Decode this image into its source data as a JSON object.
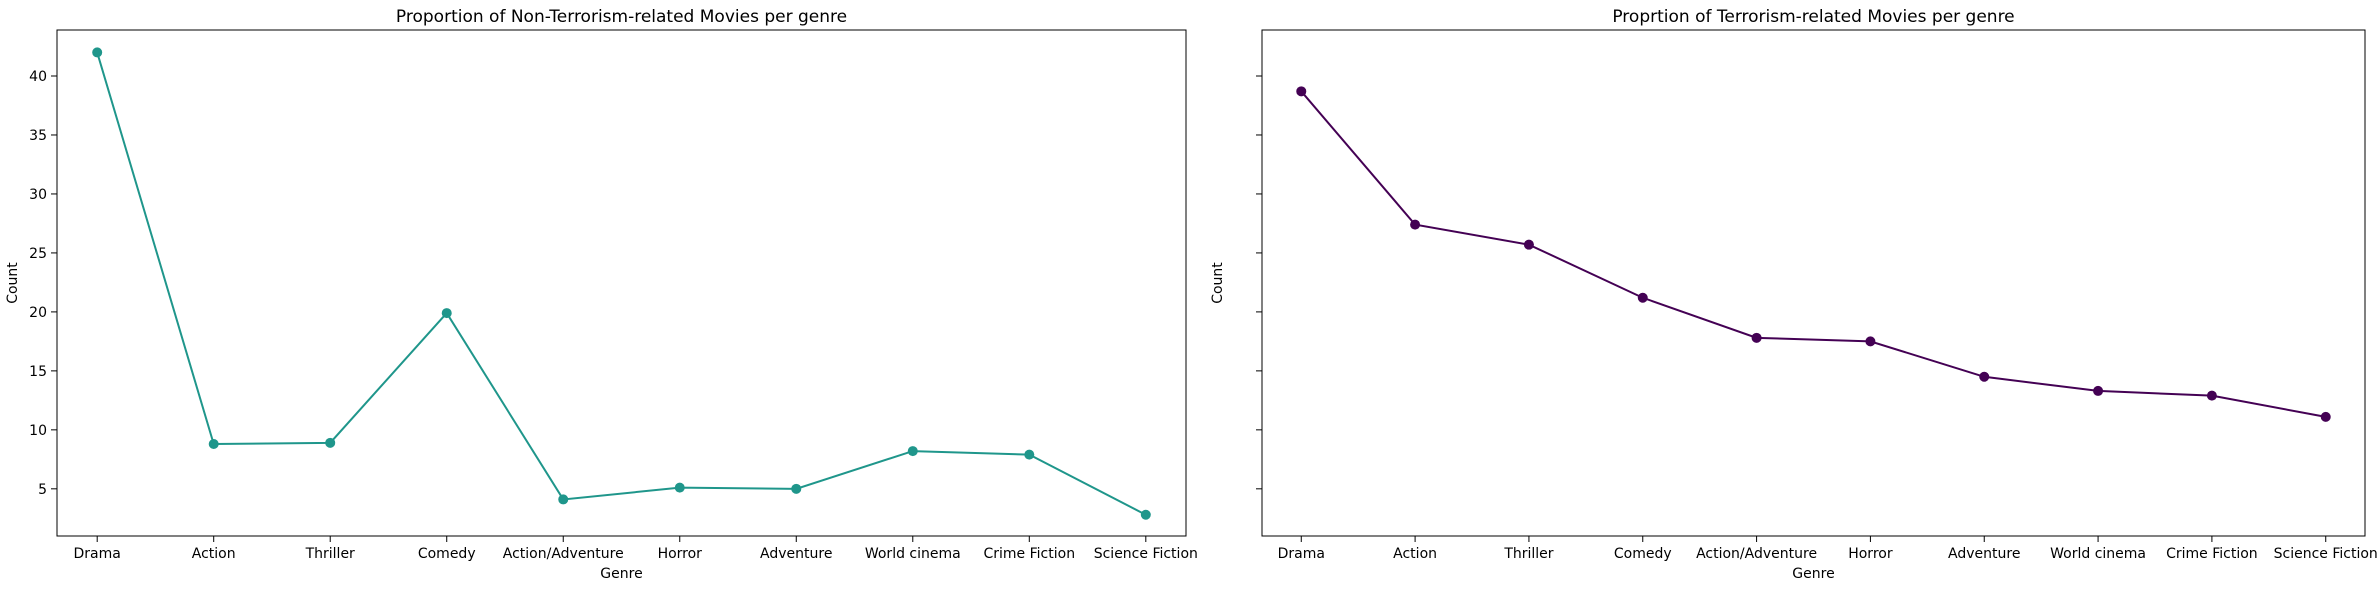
{
  "chart_data": [
    {
      "type": "line",
      "title": "Proportion of Non-Terrorism-related Movies per genre",
      "xlabel": "Genre",
      "ylabel": "Count",
      "categories": [
        "Drama",
        "Action",
        "Thriller",
        "Comedy",
        "Action/Adventure",
        "Horror",
        "Adventure",
        "World cinema",
        "Crime Fiction",
        "Science Fiction"
      ],
      "values": [
        42.0,
        8.8,
        8.9,
        19.9,
        4.1,
        5.1,
        5.0,
        8.2,
        7.9,
        2.8
      ],
      "yticks": [
        5,
        10,
        15,
        20,
        25,
        30,
        35,
        40
      ],
      "ylim": [
        1.0,
        43.9
      ],
      "color": "#1f968b",
      "marker": "circle",
      "grid": false,
      "show_ytick_labels": true
    },
    {
      "type": "line",
      "title": "Proprtion of Terrorism-related Movies per genre",
      "xlabel": "Genre",
      "ylabel": "Count",
      "categories": [
        "Drama",
        "Action",
        "Thriller",
        "Comedy",
        "Action/Adventure",
        "Horror",
        "Adventure",
        "World cinema",
        "Crime Fiction",
        "Science Fiction"
      ],
      "values": [
        38.7,
        27.4,
        25.7,
        21.2,
        17.8,
        17.5,
        14.5,
        13.3,
        12.9,
        11.1
      ],
      "yticks": [
        5,
        10,
        15,
        20,
        25,
        30,
        35,
        40
      ],
      "ylim": [
        1.0,
        43.9
      ],
      "color": "#440154",
      "marker": "circle",
      "grid": false,
      "show_ytick_labels": false
    }
  ]
}
